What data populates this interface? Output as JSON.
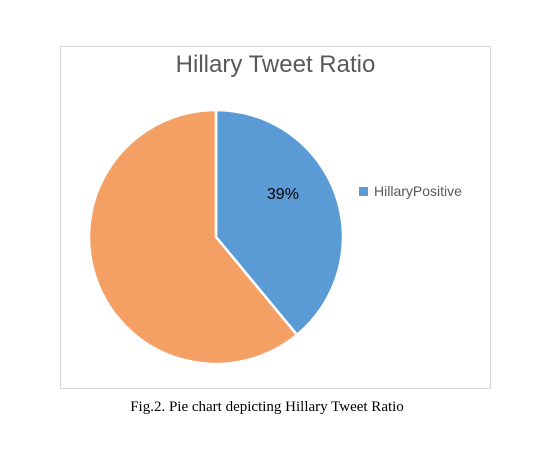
{
  "chart_data": {
    "type": "pie",
    "title": "Hillary Tweet Ratio",
    "slices": [
      {
        "name": "HillaryPositive",
        "value": 39,
        "label": "39%",
        "color": "#5b9bd5"
      },
      {
        "name": "",
        "value": 61,
        "label": "",
        "color": "#f4a065"
      }
    ],
    "legend": {
      "placement": "right",
      "entries": [
        "HillaryPositive"
      ]
    }
  },
  "figure": {
    "caption": "Fig.2. Pie chart depicting Hillary Tweet Ratio"
  }
}
